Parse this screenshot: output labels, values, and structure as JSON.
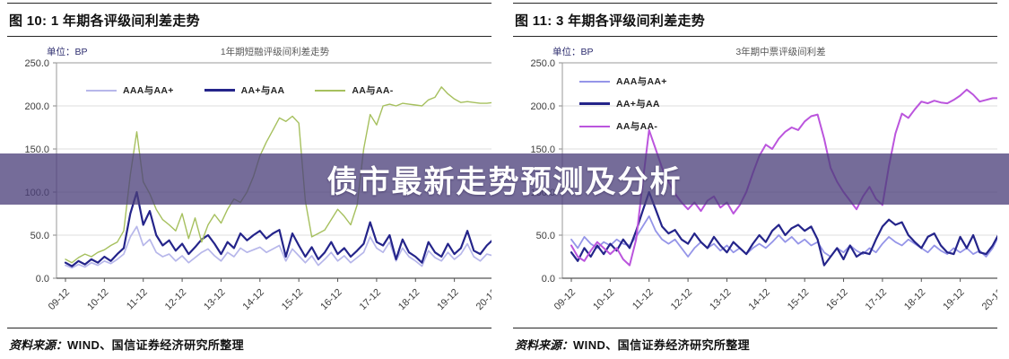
{
  "banner": {
    "text": "债市最新走势预测及分析",
    "background_color": "rgba(76,64,122,0.77)",
    "text_color": "#ffffff"
  },
  "chart_data": [
    {
      "type": "line",
      "figure_title": "图 10: 1 年期各评级间利差走势",
      "unit_label": "单位：BP",
      "inner_title": "1年期短融评级间利差走势",
      "legend_layout": "horizontal",
      "grid": true,
      "ylim": [
        0,
        250
      ],
      "y_tick_labels": [
        "0.0",
        "50.0",
        "100.0",
        "150.0",
        "200.0",
        "250.0"
      ],
      "x_tick_labels": [
        "09-12",
        "10-12",
        "11-12",
        "12-12",
        "13-12",
        "14-12",
        "15-12",
        "16-12",
        "17-12",
        "18-12",
        "19-12",
        "20-12"
      ],
      "series": [
        {
          "name": "AAA与AA+",
          "color": "#b7b7ea",
          "stroke_width": 1.7,
          "values": [
            15,
            12,
            16,
            13,
            18,
            15,
            20,
            17,
            22,
            28,
            48,
            60,
            38,
            45,
            30,
            25,
            28,
            20,
            26,
            18,
            24,
            30,
            34,
            26,
            20,
            30,
            25,
            35,
            30,
            33,
            36,
            30,
            34,
            38,
            20,
            34,
            26,
            18,
            26,
            15,
            22,
            30,
            20,
            26,
            18,
            24,
            30,
            48,
            35,
            30,
            42,
            20,
            35,
            25,
            20,
            14,
            32,
            24,
            20,
            30,
            22,
            28,
            40,
            25,
            20,
            28,
            26
          ]
        },
        {
          "name": "AA+与AA",
          "color": "#24248a",
          "stroke_width": 2.2,
          "values": [
            18,
            14,
            20,
            16,
            22,
            18,
            25,
            20,
            28,
            35,
            75,
            100,
            62,
            78,
            50,
            38,
            44,
            32,
            40,
            28,
            36,
            45,
            50,
            40,
            28,
            42,
            35,
            52,
            44,
            50,
            55,
            46,
            52,
            56,
            25,
            52,
            38,
            25,
            36,
            22,
            30,
            42,
            28,
            35,
            25,
            32,
            40,
            65,
            42,
            38,
            50,
            22,
            45,
            30,
            25,
            18,
            42,
            30,
            25,
            40,
            28,
            35,
            55,
            32,
            28,
            38,
            45
          ]
        },
        {
          "name": "AA与AA-",
          "color": "#a6c05e",
          "stroke_width": 1.4,
          "values": [
            22,
            18,
            24,
            28,
            25,
            30,
            33,
            38,
            42,
            55,
            120,
            170,
            112,
            98,
            80,
            68,
            62,
            55,
            75,
            46,
            70,
            42,
            62,
            74,
            64,
            80,
            92,
            88,
            100,
            118,
            142,
            158,
            172,
            186,
            182,
            188,
            180,
            90,
            48,
            52,
            56,
            68,
            80,
            72,
            62,
            85,
            150,
            190,
            178,
            200,
            202,
            200,
            203,
            202,
            201,
            200,
            207,
            210,
            222,
            214,
            208,
            204,
            205,
            204,
            203,
            203,
            204
          ]
        }
      ],
      "source_label": "资料来源：",
      "source_text": "WIND、国信证券经济研究所整理"
    },
    {
      "type": "line",
      "figure_title": "图 11: 3 年期各评级间利差走势",
      "unit_label": "单位：BP",
      "inner_title": "3年期中票评级间利差",
      "legend_layout": "vertical",
      "grid": true,
      "ylim": [
        0,
        250
      ],
      "y_tick_labels": [
        "0.0",
        "50.0",
        "100.0",
        "150.0",
        "200.0",
        "250.0"
      ],
      "x_tick_labels": [
        "09-12",
        "10-12",
        "11-12",
        "12-12",
        "13-12",
        "14-12",
        "15-12",
        "16-12",
        "17-12",
        "18-12",
        "19-12",
        "20-12"
      ],
      "series": [
        {
          "name": "AAA与AA+",
          "color": "#9595e8",
          "stroke_width": 1.8,
          "values": [
            45,
            35,
            48,
            40,
            35,
            42,
            38,
            45,
            40,
            38,
            48,
            60,
            72,
            55,
            45,
            40,
            45,
            35,
            25,
            35,
            42,
            35,
            40,
            32,
            38,
            30,
            35,
            28,
            35,
            40,
            35,
            42,
            50,
            42,
            48,
            40,
            45,
            38,
            42,
            30,
            25,
            35,
            30,
            38,
            32,
            28,
            35,
            30,
            40,
            48,
            42,
            38,
            45,
            40,
            35,
            30,
            38,
            32,
            28,
            35,
            30,
            35,
            28,
            32,
            25,
            35,
            50
          ]
        },
        {
          "name": "AA+与AA",
          "color": "#24248a",
          "stroke_width": 2.2,
          "values": [
            30,
            20,
            35,
            25,
            38,
            28,
            40,
            32,
            45,
            35,
            55,
            78,
            100,
            80,
            60,
            52,
            56,
            45,
            40,
            52,
            42,
            35,
            48,
            38,
            30,
            42,
            35,
            28,
            40,
            50,
            42,
            55,
            62,
            50,
            58,
            62,
            55,
            60,
            45,
            15,
            25,
            35,
            22,
            38,
            25,
            30,
            28,
            45,
            60,
            68,
            62,
            65,
            50,
            42,
            35,
            48,
            52,
            38,
            30,
            28,
            48,
            35,
            50,
            30,
            28,
            38,
            52
          ]
        },
        {
          "name": "AA与AA-",
          "color": "#bb55dd",
          "stroke_width": 2.0,
          "values": [
            38,
            25,
            20,
            32,
            42,
            35,
            28,
            35,
            22,
            15,
            45,
            110,
            172,
            150,
            128,
            112,
            98,
            88,
            80,
            88,
            78,
            90,
            95,
            82,
            88,
            75,
            85,
            100,
            122,
            142,
            155,
            150,
            162,
            170,
            175,
            172,
            182,
            188,
            190,
            162,
            128,
            112,
            100,
            90,
            80,
            95,
            106,
            92,
            85,
            130,
            168,
            191,
            186,
            196,
            205,
            203,
            206,
            204,
            203,
            207,
            212,
            219,
            213,
            205,
            207,
            209,
            209
          ]
        }
      ],
      "source_label": "资料来源：",
      "source_text": "WIND、国信证券经济研究所整理"
    }
  ]
}
